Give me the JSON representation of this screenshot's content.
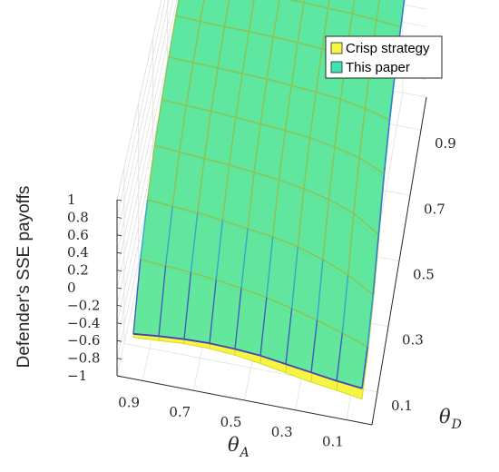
{
  "chart_data": {
    "type": "surface",
    "title": "",
    "zlabel": "Defender's SSE payoffs",
    "x_axis": {
      "symbol": "θ",
      "subscript": "A",
      "ticks": [
        "0.9",
        "0.7",
        "0.5",
        "0.3",
        "0.1"
      ]
    },
    "y_axis": {
      "symbol": "θ",
      "subscript": "D",
      "ticks": [
        "0.1",
        "0.3",
        "0.5",
        "0.7",
        "0.9"
      ]
    },
    "z_ticks": [
      "1",
      "0.8",
      "0.6",
      "0.4",
      "0.2",
      "0",
      "−0.2",
      "−0.4",
      "−0.6",
      "−0.8",
      "−1"
    ],
    "zlim": [
      -1,
      1
    ],
    "grid": true,
    "legend": {
      "position": "top-right",
      "entries": [
        "Crisp strategy",
        "This paper"
      ]
    },
    "theta_A": [
      0.95,
      0.85,
      0.75,
      0.65,
      0.55,
      0.45,
      0.35,
      0.25,
      0.15,
      0.05
    ],
    "theta_D": [
      0.05,
      0.15,
      0.25,
      0.35,
      0.45,
      0.55,
      0.65,
      0.75,
      0.85,
      0.95
    ],
    "series": [
      {
        "name": "Crisp strategy",
        "color": "#f5f542",
        "edge": "#d9d928",
        "values": [
          [
            -0.72,
            -0.22,
            0.1,
            0.35,
            0.5,
            0.62,
            0.72,
            0.79,
            0.84,
            0.88
          ],
          [
            -0.7,
            -0.24,
            0.08,
            0.33,
            0.49,
            0.61,
            0.71,
            0.78,
            0.84,
            0.88
          ],
          [
            -0.68,
            -0.27,
            0.05,
            0.31,
            0.48,
            0.6,
            0.7,
            0.78,
            0.84,
            0.88
          ],
          [
            -0.68,
            -0.3,
            0.02,
            0.29,
            0.46,
            0.59,
            0.7,
            0.78,
            0.83,
            0.88
          ],
          [
            -0.7,
            -0.35,
            -0.02,
            0.26,
            0.44,
            0.58,
            0.69,
            0.77,
            0.83,
            0.88
          ],
          [
            -0.74,
            -0.41,
            -0.07,
            0.22,
            0.42,
            0.56,
            0.68,
            0.76,
            0.83,
            0.88
          ],
          [
            -0.79,
            -0.49,
            -0.14,
            0.16,
            0.38,
            0.54,
            0.66,
            0.75,
            0.82,
            0.88
          ],
          [
            -0.84,
            -0.58,
            -0.24,
            0.08,
            0.33,
            0.5,
            0.64,
            0.74,
            0.82,
            0.88
          ],
          [
            -0.88,
            -0.68,
            -0.38,
            -0.04,
            0.25,
            0.45,
            0.61,
            0.72,
            0.81,
            0.88
          ],
          [
            -0.92,
            -0.8,
            -0.58,
            -0.25,
            0.1,
            0.36,
            0.55,
            0.69,
            0.8,
            0.88
          ]
        ]
      },
      {
        "name": "This paper",
        "color": "#3fe3b3",
        "edge": "#8fc34f",
        "values": [
          [
            -0.68,
            -0.2,
            0.11,
            0.36,
            0.51,
            0.63,
            0.73,
            0.8,
            0.85,
            0.89
          ],
          [
            -0.65,
            -0.22,
            0.09,
            0.34,
            0.5,
            0.62,
            0.72,
            0.79,
            0.85,
            0.89
          ],
          [
            -0.63,
            -0.24,
            0.07,
            0.32,
            0.49,
            0.61,
            0.71,
            0.79,
            0.85,
            0.89
          ],
          [
            -0.62,
            -0.27,
            0.04,
            0.3,
            0.47,
            0.6,
            0.71,
            0.79,
            0.84,
            0.89
          ],
          [
            -0.63,
            -0.31,
            0.0,
            0.27,
            0.45,
            0.59,
            0.7,
            0.78,
            0.84,
            0.89
          ],
          [
            -0.65,
            -0.36,
            -0.04,
            0.24,
            0.43,
            0.57,
            0.69,
            0.77,
            0.84,
            0.89
          ],
          [
            -0.69,
            -0.43,
            -0.1,
            0.19,
            0.4,
            0.55,
            0.67,
            0.76,
            0.83,
            0.89
          ],
          [
            -0.73,
            -0.51,
            -0.19,
            0.12,
            0.35,
            0.52,
            0.65,
            0.75,
            0.83,
            0.89
          ],
          [
            -0.77,
            -0.6,
            -0.31,
            0.02,
            0.28,
            0.47,
            0.62,
            0.73,
            0.82,
            0.89
          ],
          [
            -0.8,
            -0.7,
            -0.48,
            -0.17,
            0.15,
            0.39,
            0.57,
            0.7,
            0.81,
            0.89
          ]
        ]
      }
    ]
  }
}
